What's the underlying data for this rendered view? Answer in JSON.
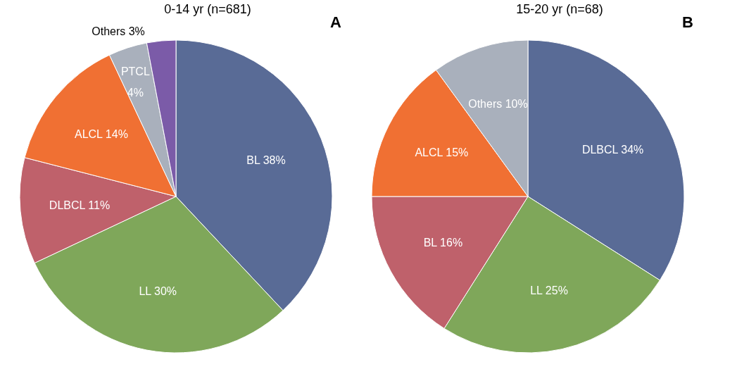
{
  "chart_data": [
    {
      "type": "pie",
      "title": "0-14 yr (n=681)",
      "categories": [
        "BL",
        "LL",
        "DLBCL",
        "ALCL",
        "PTCL",
        "Others"
      ],
      "values": [
        38,
        30,
        11,
        14,
        4,
        3
      ],
      "colors": [
        "#596b96",
        "#7fa75a",
        "#bf616b",
        "#f07033",
        "#a9b0bc",
        "#7b5ba8"
      ],
      "value_labels": [
        "38%",
        "30%",
        "11%",
        "14%",
        "4%",
        "3%"
      ],
      "annotations": [
        "A"
      ]
    },
    {
      "type": "pie",
      "title": "15-20 yr (n=68)",
      "categories": [
        "DLBCL",
        "LL",
        "BL",
        "ALCL",
        "Others"
      ],
      "values": [
        34,
        25,
        16,
        15,
        10
      ],
      "colors": [
        "#596b96",
        "#7fa75a",
        "#bf616b",
        "#f07033",
        "#a9b0bc"
      ],
      "value_labels": [
        "34%",
        "25%",
        "16%",
        "15%",
        "10%"
      ],
      "annotations": [
        "B"
      ]
    }
  ]
}
